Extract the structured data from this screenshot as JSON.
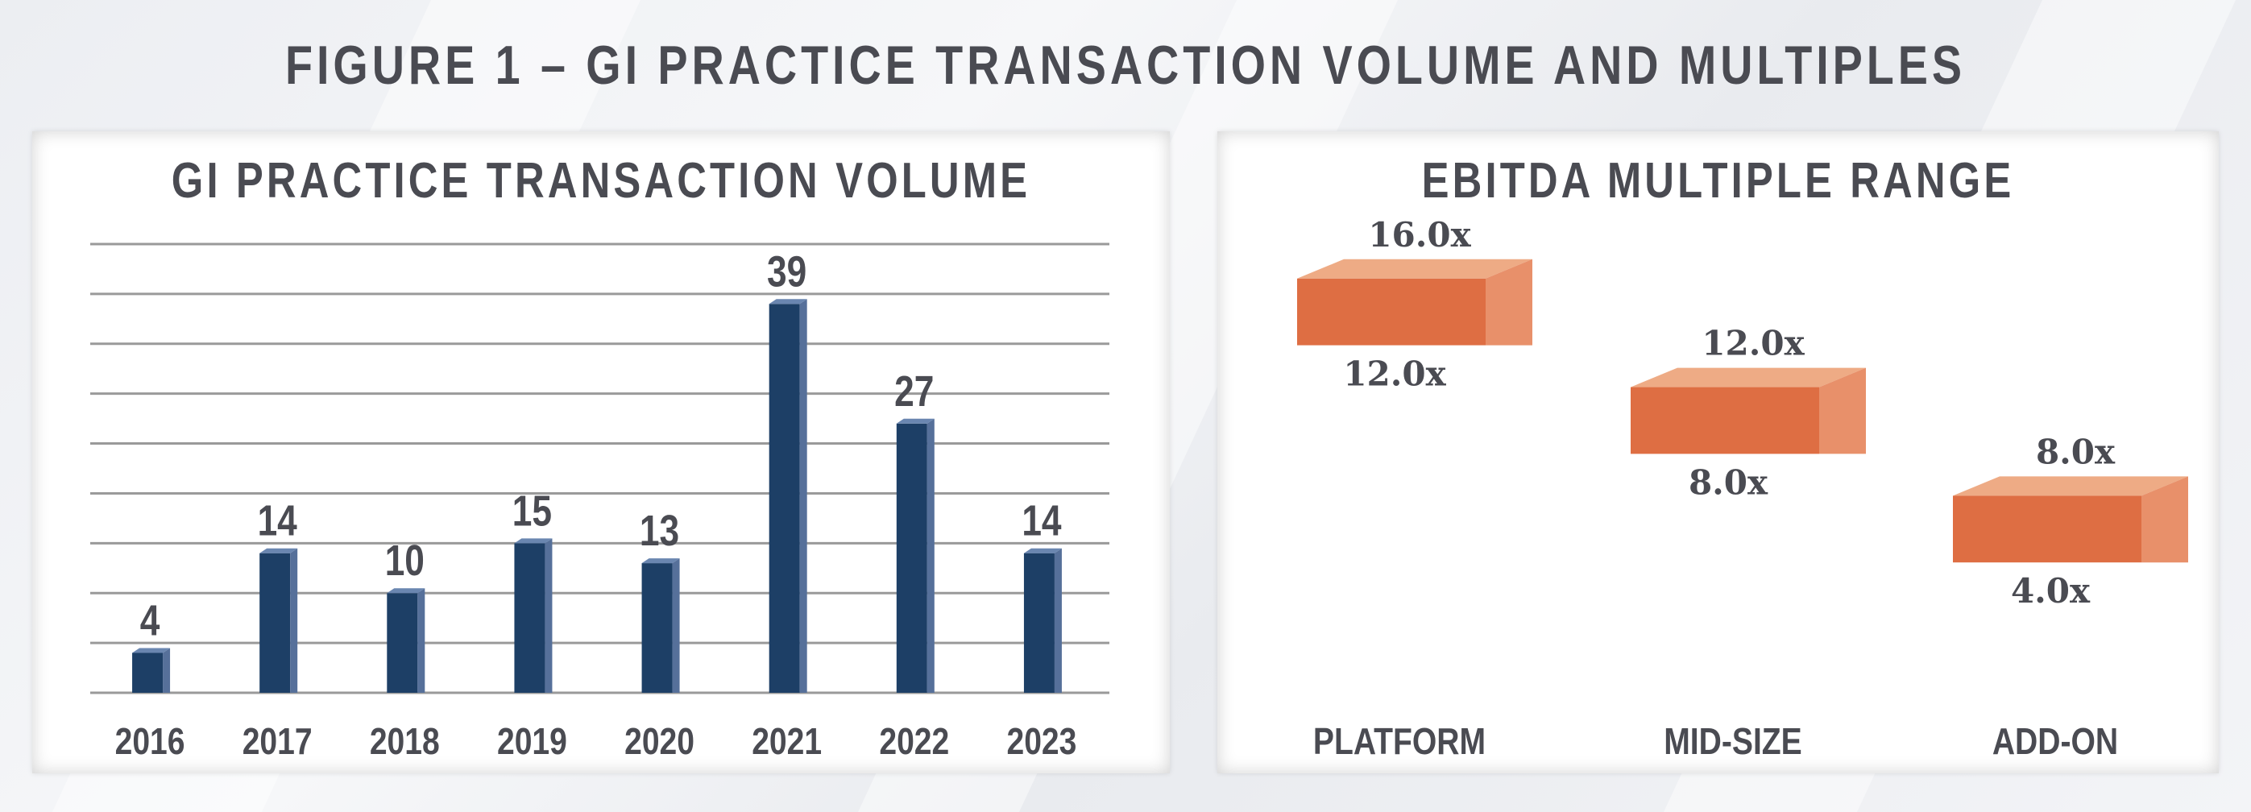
{
  "title": "FIGURE 1 – GI PRACTICE TRANSACTION VOLUME AND MULTIPLES",
  "colors": {
    "bar": "#1d3f66",
    "bar_side": "#56709a",
    "bar_top": "#6a86b0",
    "range": "#de6e43",
    "range_side": "#e8906a",
    "range_top": "#eeab85",
    "text": "#4a4b52",
    "grid": "#9a9a9a"
  },
  "chart_data": [
    {
      "type": "bar",
      "title": "GI PRACTICE TRANSACTION VOLUME",
      "categories": [
        "2016",
        "2017",
        "2018",
        "2019",
        "2020",
        "2021",
        "2022",
        "2023"
      ],
      "values": [
        4,
        14,
        10,
        15,
        13,
        39,
        27,
        14
      ],
      "data_labels": [
        "4",
        "14",
        "10",
        "15",
        "13",
        "39",
        "27",
        "14"
      ],
      "ylim": [
        0,
        45
      ],
      "grid": true,
      "gridlines": 9
    },
    {
      "type": "bar",
      "title": "EBITDA MULTIPLE RANGE",
      "categories": [
        "PLATFORM",
        "MID-SIZE",
        "ADD-ON"
      ],
      "series": [
        {
          "low": [
            12.0,
            8.0,
            4.0
          ],
          "high": [
            16.0,
            12.0,
            8.0
          ]
        }
      ],
      "high_labels": [
        "16.0x",
        "12.0x",
        "8.0x"
      ],
      "low_labels": [
        "12.0x",
        "8.0x",
        "4.0x"
      ],
      "ylim": [
        0,
        20
      ]
    }
  ]
}
